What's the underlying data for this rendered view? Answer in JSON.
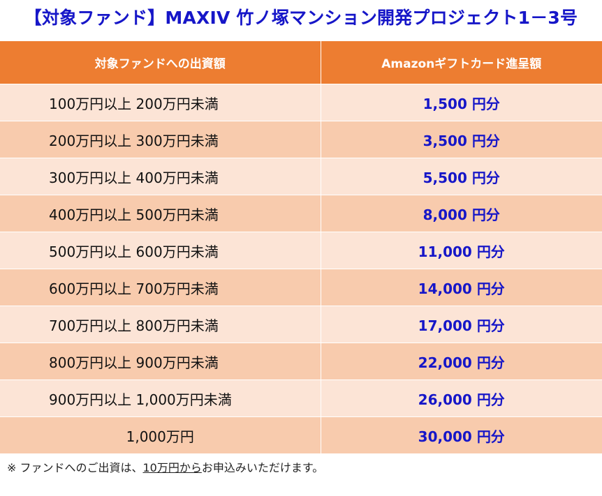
{
  "title": "【対象ファンド】MAXIV 竹ノ塚マンション開発プロジェクト1－3号",
  "table": {
    "headers": [
      "対象ファンドへの出資額",
      "Amazonギフトカード進呈額"
    ],
    "rows": [
      {
        "range": "100万円以上 200万円未満",
        "amount": "1,500 円分"
      },
      {
        "range": "200万円以上 300万円未満",
        "amount": "3,500 円分"
      },
      {
        "range": "300万円以上 400万円未満",
        "amount": "5,500 円分"
      },
      {
        "range": "400万円以上 500万円未満",
        "amount": "8,000 円分"
      },
      {
        "range": "500万円以上 600万円未満",
        "amount": "11,000 円分"
      },
      {
        "range": "600万円以上 700万円未満",
        "amount": "14,000 円分"
      },
      {
        "range": "700万円以上 800万円未満",
        "amount": "17,000 円分"
      },
      {
        "range": "800万円以上 900万円未満",
        "amount": "22,000 円分"
      },
      {
        "range": "900万円以上 1,000万円未満",
        "amount": "26,000 円分"
      },
      {
        "range": "1,000万円",
        "amount": "30,000 円分"
      }
    ]
  },
  "footnote": {
    "prefix": "※ ファンドへのご出資は、",
    "underlined": "10万円から",
    "suffix": "お申込みいただけます。"
  },
  "colors": {
    "title": "#1616c8",
    "header_bg": "#ed7d31",
    "row_light": "#fce4d6",
    "row_dark": "#f8cbad",
    "amount_text": "#1616c8"
  }
}
